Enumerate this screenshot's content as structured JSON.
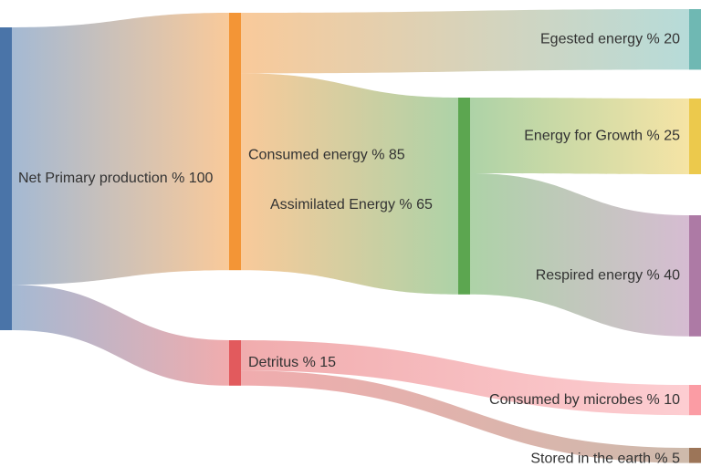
{
  "chart_data": {
    "type": "sankey",
    "unit": "%",
    "nodes": [
      {
        "id": "npp",
        "label": "Net Primary production % 100",
        "value": 100,
        "color": "#4a74a8",
        "column": 0
      },
      {
        "id": "consumed",
        "label": "Consumed energy % 85",
        "value": 85,
        "color": "#f39536",
        "column": 1
      },
      {
        "id": "detritus",
        "label": "Detritus % 15",
        "value": 15,
        "color": "#e25a5d",
        "column": 1
      },
      {
        "id": "assimilated",
        "label": "Assimilated Energy % 65",
        "value": 65,
        "color": "#5ca650",
        "column": 2
      },
      {
        "id": "egested",
        "label": "Egested energy % 20",
        "value": 20,
        "color": "#6fb8b3",
        "column": 3
      },
      {
        "id": "growth",
        "label": "Energy for Growth % 25",
        "value": 25,
        "color": "#ecc94c",
        "column": 3
      },
      {
        "id": "respired",
        "label": "Respired energy % 40",
        "value": 40,
        "color": "#ad7aa5",
        "column": 3
      },
      {
        "id": "microbes",
        "label": "Consumed by microbes % 10",
        "value": 10,
        "color": "#fb9ca4",
        "column": 3
      },
      {
        "id": "stored",
        "label": "Stored in the earth % 5",
        "value": 5,
        "color": "#9c7558",
        "column": 3
      }
    ],
    "links": [
      {
        "source": "npp",
        "target": "consumed",
        "value": 85
      },
      {
        "source": "npp",
        "target": "detritus",
        "value": 15
      },
      {
        "source": "consumed",
        "target": "egested",
        "value": 20
      },
      {
        "source": "consumed",
        "target": "assimilated",
        "value": 65
      },
      {
        "source": "assimilated",
        "target": "growth",
        "value": 25
      },
      {
        "source": "assimilated",
        "target": "respired",
        "value": 40
      },
      {
        "source": "detritus",
        "target": "microbes",
        "value": 10
      },
      {
        "source": "detritus",
        "target": "stored",
        "value": 5
      }
    ]
  }
}
